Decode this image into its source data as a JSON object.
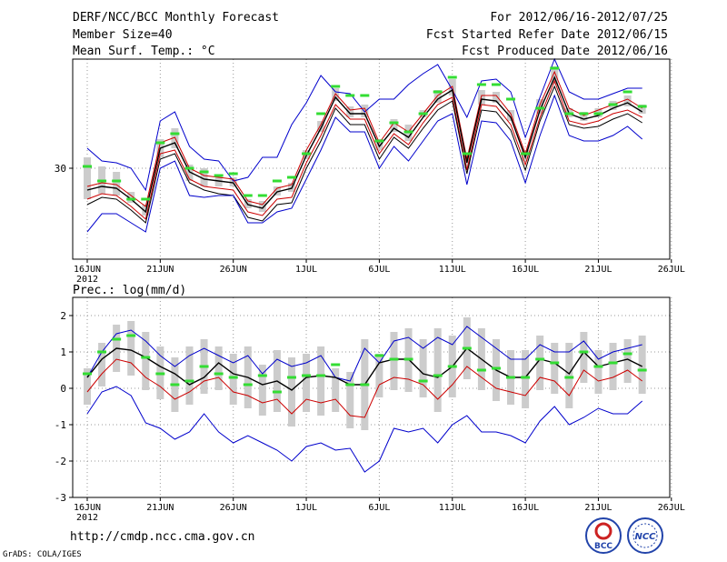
{
  "header": {
    "left": [
      "DERF/NCC/BCC Monthly Forecast",
      "Member Size=40",
      "Mean Surf. Temp.: °C"
    ],
    "right": [
      "For 2012/06/16-2012/07/25",
      "Fcst Started Refer Date 2012/06/15",
      "Fcst Produced Date 2012/06/16"
    ]
  },
  "footer": {
    "url": "http://cmdp.ncc.cma.gov.cn",
    "grads": "GrADS: COLA/IGES"
  },
  "logos": {
    "bcc": "BCC",
    "ncc": "NCC"
  },
  "colors": {
    "envelope": "#0000cc",
    "lower": "#cc0000",
    "mean": "#000000",
    "median": "#33dd33",
    "box": "#cccccc",
    "grid": "#999999"
  },
  "chart_data": [
    {
      "type": "line",
      "title": "Mean Surf. Temp.: °C",
      "x_tick_labels": [
        "16JUN",
        "21JUN",
        "26JUN",
        "1JUL",
        "6JUL",
        "11JUL",
        "16JUL",
        "21JUL",
        "26JUL"
      ],
      "year_label": "2012",
      "ylim": [
        25.0,
        36.0
      ],
      "y_ticks": [
        30
      ],
      "series": [
        {
          "name": "max",
          "values": [
            31.1,
            30.4,
            30.3,
            30.0,
            28.8,
            32.6,
            33.1,
            31.2,
            30.5,
            30.4,
            29.3,
            29.5,
            30.6,
            30.6,
            32.4,
            33.6,
            35.1,
            34.2,
            34.1,
            33.1,
            33.8,
            33.8,
            34.6,
            35.2,
            35.7,
            34.3,
            32.8,
            34.8,
            34.9,
            34.2,
            31.7,
            33.9,
            36.0,
            34.2,
            33.8,
            33.8,
            34.1,
            34.4,
            34.4
          ]
        },
        {
          "name": "upper",
          "values": [
            29.0,
            29.2,
            29.1,
            28.5,
            27.9,
            31.4,
            31.7,
            30.0,
            29.6,
            29.5,
            29.4,
            28.2,
            28.0,
            28.9,
            29.1,
            31.0,
            32.4,
            34.1,
            33.2,
            33.3,
            31.4,
            32.5,
            32.0,
            33.0,
            34.0,
            34.5,
            30.5,
            34.0,
            34.0,
            33.0,
            30.8,
            33.5,
            35.3,
            33.3,
            32.9,
            33.2,
            33.5,
            33.8,
            33.3
          ]
        },
        {
          "name": "mean",
          "values": [
            28.8,
            29.0,
            28.9,
            28.3,
            27.6,
            31.1,
            31.4,
            29.8,
            29.4,
            29.3,
            29.2,
            28.0,
            27.8,
            28.7,
            28.9,
            30.7,
            32.2,
            33.9,
            33.0,
            33.0,
            31.2,
            32.2,
            31.7,
            32.8,
            33.8,
            34.3,
            30.3,
            33.8,
            33.7,
            32.8,
            30.6,
            33.2,
            35.0,
            33.0,
            32.7,
            32.9,
            33.3,
            33.6,
            33.1
          ]
        },
        {
          "name": "lower",
          "values": [
            28.3,
            28.6,
            28.5,
            27.9,
            27.2,
            30.8,
            31.0,
            29.4,
            29.0,
            28.9,
            28.8,
            27.6,
            27.4,
            28.3,
            28.4,
            30.3,
            31.8,
            33.5,
            32.7,
            32.7,
            30.8,
            31.9,
            31.3,
            32.5,
            33.5,
            33.9,
            29.9,
            33.5,
            33.4,
            32.4,
            30.2,
            32.8,
            34.8,
            32.6,
            32.4,
            32.6,
            33.0,
            33.2,
            32.8
          ]
        },
        {
          "name": "p_low",
          "values": [
            28.0,
            28.4,
            28.3,
            27.7,
            27.0,
            30.5,
            30.8,
            29.2,
            28.8,
            28.6,
            28.5,
            27.3,
            27.1,
            28.0,
            28.1,
            30.0,
            31.5,
            33.3,
            32.4,
            32.4,
            30.5,
            31.7,
            31.1,
            32.2,
            33.2,
            33.7,
            29.7,
            33.2,
            33.1,
            32.1,
            29.9,
            32.6,
            34.5,
            32.4,
            32.2,
            32.3,
            32.7,
            33.0,
            32.5
          ]
        },
        {
          "name": "min",
          "values": [
            26.5,
            27.5,
            27.5,
            27.0,
            26.5,
            30.0,
            30.4,
            28.5,
            28.4,
            28.5,
            28.5,
            27.0,
            27.0,
            27.6,
            27.8,
            29.4,
            31.0,
            32.8,
            32.0,
            32.0,
            30.0,
            31.2,
            30.4,
            31.5,
            32.6,
            33.0,
            29.1,
            32.6,
            32.5,
            31.5,
            29.2,
            31.8,
            34.0,
            31.8,
            31.5,
            31.5,
            31.8,
            32.3,
            31.6
          ]
        }
      ],
      "median": [
        30.1,
        29.3,
        29.3,
        28.3,
        28.3,
        31.4,
        31.9,
        30.0,
        29.8,
        29.6,
        29.7,
        28.5,
        28.5,
        29.3,
        29.5,
        30.8,
        33.0,
        34.5,
        34.0,
        34.0,
        31.5,
        32.5,
        32.0,
        33.0,
        34.2,
        35.0,
        30.8,
        34.6,
        34.6,
        33.8,
        30.8,
        33.3,
        35.5,
        33.0,
        33.0,
        33.0,
        33.5,
        34.2,
        33.4
      ],
      "boxes": [
        [
          30.6,
          28.3
        ],
        [
          30.1,
          28.6
        ],
        [
          29.8,
          28.5
        ],
        [
          28.7,
          28.1
        ],
        [
          28.0,
          27.4
        ],
        [
          31.6,
          30.6
        ],
        [
          32.2,
          31.1
        ],
        [
          30.2,
          29.3
        ],
        [
          30.0,
          29.0
        ],
        [
          29.6,
          29.0
        ],
        [
          29.5,
          29.0
        ],
        [
          28.3,
          27.8
        ],
        [
          28.2,
          27.6
        ],
        [
          29.0,
          28.5
        ],
        [
          29.2,
          28.7
        ],
        [
          31.0,
          30.5
        ],
        [
          32.6,
          32.0
        ],
        [
          34.4,
          33.7
        ],
        [
          33.4,
          32.8
        ],
        [
          33.5,
          32.8
        ],
        [
          31.6,
          31.0
        ],
        [
          32.7,
          32.0
        ],
        [
          32.4,
          31.5
        ],
        [
          33.2,
          32.8
        ],
        [
          34.3,
          33.6
        ],
        [
          34.9,
          34.0
        ],
        [
          30.7,
          30.0
        ],
        [
          34.3,
          33.5
        ],
        [
          34.2,
          33.6
        ],
        [
          33.2,
          32.6
        ],
        [
          31.0,
          30.4
        ],
        [
          33.8,
          33.0
        ],
        [
          35.6,
          34.6
        ],
        [
          33.3,
          32.8
        ],
        [
          33.1,
          32.6
        ],
        [
          33.3,
          32.8
        ],
        [
          33.7,
          33.2
        ],
        [
          34.0,
          33.4
        ],
        [
          33.5,
          33.0
        ]
      ]
    },
    {
      "type": "line",
      "title": "Prec.: log(mm/d)",
      "x_tick_labels": [
        "16JUN",
        "21JUN",
        "26JUN",
        "1JUL",
        "6JUL",
        "11JUL",
        "16JUL",
        "21JUL",
        "26JUL"
      ],
      "year_label": "2012",
      "ylim": [
        -3,
        2.5
      ],
      "y_ticks": [
        -3,
        -2,
        -1,
        0,
        1,
        2
      ],
      "series": [
        {
          "name": "upper",
          "values": [
            0.3,
            1.0,
            1.5,
            1.6,
            1.3,
            0.9,
            0.6,
            0.9,
            1.1,
            0.9,
            0.7,
            0.9,
            0.4,
            0.8,
            0.6,
            0.7,
            0.9,
            0.3,
            0.2,
            1.1,
            0.7,
            1.3,
            1.4,
            1.1,
            1.4,
            1.2,
            1.7,
            1.4,
            1.1,
            0.8,
            0.8,
            1.2,
            1.0,
            1.0,
            1.3,
            0.8,
            1.0,
            1.1,
            1.2
          ]
        },
        {
          "name": "mean",
          "values": [
            0.3,
            0.8,
            1.1,
            1.05,
            0.85,
            0.6,
            0.4,
            0.1,
            0.3,
            0.7,
            0.4,
            0.3,
            0.1,
            0.2,
            -0.05,
            0.3,
            0.35,
            0.3,
            0.1,
            0.1,
            0.7,
            0.8,
            0.8,
            0.4,
            0.3,
            0.6,
            1.1,
            0.8,
            0.5,
            0.3,
            0.3,
            0.8,
            0.7,
            0.4,
            1.0,
            0.6,
            0.7,
            0.8,
            0.6
          ]
        },
        {
          "name": "lower",
          "values": [
            -0.1,
            0.4,
            0.8,
            0.7,
            0.3,
            0.05,
            -0.3,
            -0.1,
            0.2,
            0.3,
            -0.1,
            -0.2,
            -0.4,
            -0.3,
            -0.7,
            -0.3,
            -0.4,
            -0.3,
            -0.75,
            -0.8,
            0.1,
            0.3,
            0.25,
            0.1,
            -0.3,
            0.1,
            0.6,
            0.3,
            0.0,
            -0.1,
            -0.2,
            0.3,
            0.2,
            -0.2,
            0.5,
            0.2,
            0.3,
            0.5,
            0.2
          ]
        },
        {
          "name": "min",
          "values": [
            -0.7,
            -0.1,
            0.05,
            -0.2,
            -0.95,
            -1.1,
            -1.4,
            -1.2,
            -0.7,
            -1.2,
            -1.5,
            -1.3,
            -1.5,
            -1.7,
            -2.0,
            -1.6,
            -1.5,
            -1.7,
            -1.65,
            -2.3,
            -2.0,
            -1.1,
            -1.2,
            -1.1,
            -1.5,
            -1.0,
            -0.75,
            -1.2,
            -1.2,
            -1.3,
            -1.5,
            -0.9,
            -0.5,
            -1.0,
            -0.8,
            -0.55,
            -0.7,
            -0.7,
            -0.35
          ]
        }
      ],
      "median": [
        0.4,
        1.0,
        1.35,
        1.45,
        0.85,
        0.4,
        0.1,
        0.2,
        0.6,
        0.4,
        0.3,
        0.1,
        0.35,
        -0.1,
        0.3,
        0.35,
        0.35,
        0.65,
        0.1,
        0.1,
        0.9,
        0.8,
        0.8,
        0.2,
        0.35,
        0.6,
        1.1,
        0.5,
        0.55,
        0.3,
        0.3,
        0.8,
        0.7,
        0.3,
        1.0,
        0.6,
        0.7,
        0.95,
        0.5
      ]
    }
  ]
}
